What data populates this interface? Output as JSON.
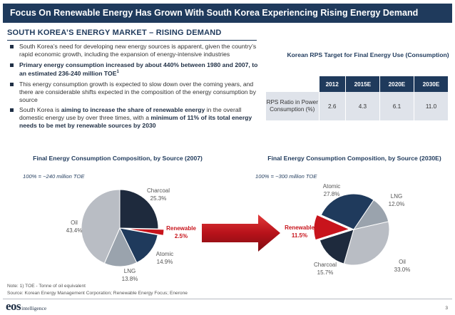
{
  "title": "Focus On Renewable Energy Has Grown With South Korea Experiencing Rising Energy Demand",
  "section_heading": "SOUTH KOREA’S ENERGY MARKET – RISING DEMAND",
  "bullets": [
    {
      "parts": [
        {
          "text": "South Korea’s need for developing new energy sources is apparent, given the country’s rapid economic growth, including the expansion of energy-intensive industries",
          "bold": false
        }
      ]
    },
    {
      "parts": [
        {
          "text": "Primary energy consumption increased by about 440% between 1980 and 2007, to an estimated 236-240 million TOE",
          "bold": true
        },
        {
          "text": "1",
          "bold": true,
          "sup": true
        }
      ]
    },
    {
      "parts": [
        {
          "text": "This energy consumption growth is expected to slow down over the coming years, and there are considerable shifts expected in the composition of the energy consumption by source",
          "bold": false
        }
      ]
    },
    {
      "parts": [
        {
          "text": "South Korea is ",
          "bold": false
        },
        {
          "text": "aiming to increase the share of renewable energy",
          "bold": true
        },
        {
          "text": " in the overall domestic energy use by over three times, with a ",
          "bold": false
        },
        {
          "text": "minimum of 11% of its total energy needs to be met by renewable sources by 2030",
          "bold": true
        }
      ]
    }
  ],
  "rps": {
    "title": "Korean RPS Target for Final Energy Use (Consumption)",
    "headers": [
      "",
      "2012",
      "2015E",
      "2020E",
      "2030E"
    ],
    "row_label": "RPS Ratio in Power Consumption (%)",
    "values": [
      "2.6",
      "4.3",
      "6.1",
      "11.0"
    ]
  },
  "pie_left": {
    "title": "Final Energy Consumption Composition, by Source (2007)",
    "scale_note": "100% = ~240 million TOE",
    "slices": [
      {
        "name": "Charcoal",
        "value": 25.3,
        "label": "25.3%",
        "color": "#1e2a3d"
      },
      {
        "name": "Renewable",
        "value": 2.5,
        "label": "2.5%",
        "color": "#c8141c"
      },
      {
        "name": "Atomic",
        "value": 14.9,
        "label": "14.9%",
        "color": "#1f3a5c"
      },
      {
        "name": "LNG",
        "value": 13.8,
        "label": "13.8%",
        "color": "#9aa3ad"
      },
      {
        "name": "Oil",
        "value": 43.4,
        "label": "43.4%",
        "color": "#b9bdc4"
      }
    ]
  },
  "pie_right": {
    "title": "Final Energy Consumption Composition, by Source (2030E)",
    "scale_note": "100% = ~300 million TOE",
    "slices": [
      {
        "name": "LNG",
        "value": 12.0,
        "label": "12.0%",
        "color": "#9aa3ad"
      },
      {
        "name": "Oil",
        "value": 33.0,
        "label": "33.0%",
        "color": "#b9bdc4"
      },
      {
        "name": "Charcoal",
        "value": 15.7,
        "label": "15.7%",
        "color": "#1e2a3d"
      },
      {
        "name": "Renewable",
        "value": 11.5,
        "label": "11.5%",
        "color": "#c8141c"
      },
      {
        "name": "Atomic",
        "value": 27.8,
        "label": "27.8%",
        "color": "#1f3a5c"
      }
    ]
  },
  "notes": {
    "note": "Note:     1) TOE - Tonne of oil equivalent",
    "source": "Source: Korean Energy Management Corporation; Renewable Energy Focus; Enerone"
  },
  "logo": {
    "mark": "eos",
    "text": "intelligence"
  },
  "page_number": "3"
}
